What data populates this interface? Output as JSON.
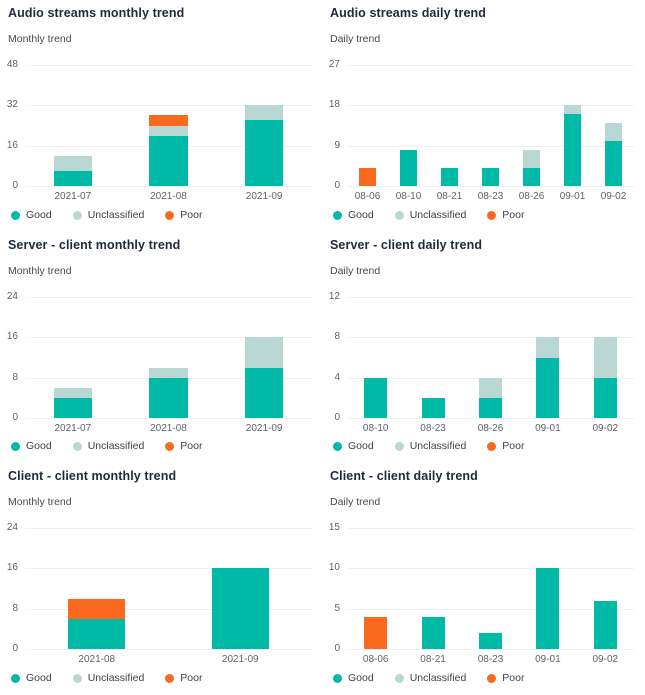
{
  "colors": {
    "Good": "#00b9a6",
    "Unclassified": "#b9d8d3",
    "Poor": "#fa6a1e",
    "title_text": "#1f2a3d",
    "subtitle_text": "#45494e",
    "axis_text": "#5e6369",
    "gridline": "#eff1f1"
  },
  "legend": [
    {
      "label": "Good"
    },
    {
      "label": "Unclassified"
    },
    {
      "label": "Poor"
    }
  ],
  "chart_data": [
    {
      "type": "bar",
      "stacked": true,
      "title": "Audio streams monthly trend",
      "subtitle": "Monthly trend",
      "categories": [
        "2021-07",
        "2021-08",
        "2021-09"
      ],
      "yticks": [
        48,
        32,
        16,
        0
      ],
      "ylim": [
        0,
        48
      ],
      "grid": true,
      "legend_position": "bottom",
      "series": [
        {
          "name": "Good",
          "values": [
            6,
            20,
            26
          ]
        },
        {
          "name": "Unclassified",
          "values": [
            6,
            4,
            6
          ]
        },
        {
          "name": "Poor",
          "values": [
            0,
            4,
            0
          ]
        }
      ],
      "legend": [
        "Good",
        "Unclassified",
        "Poor"
      ]
    },
    {
      "type": "bar",
      "stacked": true,
      "title": "Audio streams daily trend",
      "subtitle": "Daily trend",
      "categories": [
        "08-06",
        "08-10",
        "08-21",
        "08-23",
        "08-26",
        "09-01",
        "09-02"
      ],
      "yticks": [
        27,
        18,
        9,
        0
      ],
      "ylim": [
        0,
        27
      ],
      "grid": true,
      "legend_position": "bottom",
      "series": [
        {
          "name": "Good",
          "values": [
            0,
            8,
            4,
            4,
            4,
            16,
            10
          ]
        },
        {
          "name": "Unclassified",
          "values": [
            0,
            0,
            0,
            0,
            4,
            2,
            4
          ]
        },
        {
          "name": "Poor",
          "values": [
            4,
            0,
            0,
            0,
            0,
            0,
            0
          ]
        }
      ],
      "legend": [
        "Good",
        "Unclassified",
        "Poor"
      ]
    },
    {
      "type": "bar",
      "stacked": true,
      "title": "Server - client monthly trend",
      "subtitle": "Monthly trend",
      "categories": [
        "2021-07",
        "2021-08",
        "2021-09"
      ],
      "yticks": [
        24,
        16,
        8,
        0
      ],
      "ylim": [
        0,
        24
      ],
      "grid": true,
      "legend_position": "bottom",
      "series": [
        {
          "name": "Good",
          "values": [
            4,
            8,
            10
          ]
        },
        {
          "name": "Unclassified",
          "values": [
            2,
            2,
            6
          ]
        },
        {
          "name": "Poor",
          "values": [
            0,
            0,
            0
          ]
        }
      ],
      "legend": [
        "Good",
        "Unclassified",
        "Poor"
      ]
    },
    {
      "type": "bar",
      "stacked": true,
      "title": "Server - client daily trend",
      "subtitle": "Daily trend",
      "categories": [
        "08-10",
        "08-23",
        "08-26",
        "09-01",
        "09-02"
      ],
      "yticks": [
        12,
        8,
        4,
        0
      ],
      "ylim": [
        0,
        12
      ],
      "grid": true,
      "legend_position": "bottom",
      "series": [
        {
          "name": "Good",
          "values": [
            4,
            2,
            2,
            6,
            4
          ]
        },
        {
          "name": "Unclassified",
          "values": [
            0,
            0,
            2,
            2,
            4
          ]
        },
        {
          "name": "Poor",
          "values": [
            0,
            0,
            0,
            0,
            0
          ]
        }
      ],
      "legend": [
        "Good",
        "Unclassified",
        "Poor"
      ]
    },
    {
      "type": "bar",
      "stacked": true,
      "title": "Client - client monthly trend",
      "subtitle": "Monthly trend",
      "categories": [
        "2021-08",
        "2021-09"
      ],
      "yticks": [
        24,
        16,
        8,
        0
      ],
      "ylim": [
        0,
        24
      ],
      "grid": true,
      "legend_position": "bottom",
      "series": [
        {
          "name": "Good",
          "values": [
            6,
            16
          ]
        },
        {
          "name": "Unclassified",
          "values": [
            0,
            0
          ]
        },
        {
          "name": "Poor",
          "values": [
            4,
            0
          ]
        }
      ],
      "legend": [
        "Good",
        "Unclassified",
        "Poor"
      ]
    },
    {
      "type": "bar",
      "stacked": true,
      "title": "Client - client daily trend",
      "subtitle": "Daily trend",
      "categories": [
        "08-06",
        "08-21",
        "08-23",
        "09-01",
        "09-02"
      ],
      "yticks": [
        15,
        10,
        5,
        0
      ],
      "ylim": [
        0,
        15
      ],
      "grid": true,
      "legend_position": "bottom",
      "series": [
        {
          "name": "Good",
          "values": [
            0,
            4,
            2,
            10,
            6
          ]
        },
        {
          "name": "Unclassified",
          "values": [
            0,
            0,
            0,
            0,
            0
          ]
        },
        {
          "name": "Poor",
          "values": [
            4,
            0,
            0,
            0,
            0
          ]
        }
      ],
      "legend": [
        "Good",
        "Unclassified",
        "Poor"
      ]
    }
  ]
}
